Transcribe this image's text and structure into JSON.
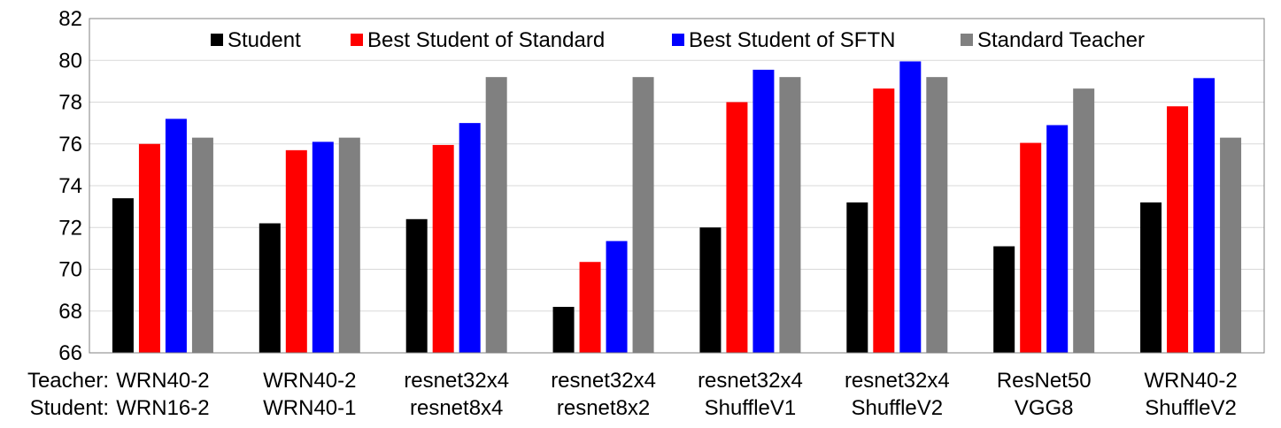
{
  "chart_data": {
    "type": "bar",
    "ylim": [
      66,
      82
    ],
    "ytick_step": 2,
    "grid": true,
    "legend_position": "top-inside",
    "row_labels": [
      "Teacher:",
      "Student:"
    ],
    "categories": [
      {
        "teacher": "WRN40-2",
        "student": "WRN16-2"
      },
      {
        "teacher": "WRN40-2",
        "student": "WRN40-1"
      },
      {
        "teacher": "resnet32x4",
        "student": "resnet8x4"
      },
      {
        "teacher": "resnet32x4",
        "student": "resnet8x2"
      },
      {
        "teacher": "resnet32x4",
        "student": "ShuffleV1"
      },
      {
        "teacher": "resnet32x4",
        "student": "ShuffleV2"
      },
      {
        "teacher": "ResNet50",
        "student": "VGG8"
      },
      {
        "teacher": "WRN40-2",
        "student": "ShuffleV2"
      }
    ],
    "series": [
      {
        "name": "Student",
        "color": "#000000",
        "values": [
          73.4,
          72.2,
          72.4,
          68.2,
          72.0,
          73.2,
          71.1,
          73.2
        ]
      },
      {
        "name": "Best Student of Standard",
        "color": "#ff0000",
        "values": [
          76.0,
          75.7,
          75.95,
          70.35,
          78.0,
          78.65,
          76.05,
          77.8
        ]
      },
      {
        "name": "Best Student of SFTN",
        "color": "#0000ff",
        "values": [
          77.2,
          76.1,
          77.0,
          71.35,
          79.55,
          79.95,
          76.9,
          79.15
        ]
      },
      {
        "name": "Standard Teacher",
        "color": "#808080",
        "values": [
          76.3,
          76.3,
          79.2,
          79.2,
          79.2,
          79.2,
          78.65,
          76.3
        ]
      }
    ]
  }
}
